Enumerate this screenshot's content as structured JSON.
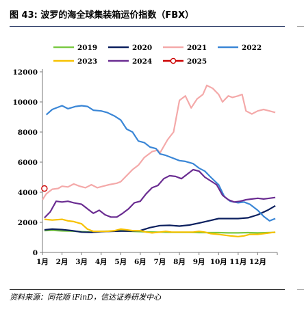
{
  "figure": {
    "number_label": "图 43:",
    "title": "波罗的海全球集装箱运价指数（FBX）",
    "source": "资料来源：同花顺 iFinD，信达证券研发中心"
  },
  "chart_data": {
    "type": "line",
    "title": "波罗的海全球集装箱运价指数（FBX）",
    "xlabel": "",
    "ylabel": "",
    "ylim": [
      0,
      12000
    ],
    "yticks": [
      0,
      2000,
      4000,
      6000,
      8000,
      10000,
      12000
    ],
    "xlim": [
      1,
      13
    ],
    "categories": [
      "1月",
      "2月",
      "3月",
      "4月",
      "5月",
      "6月",
      "7月",
      "8月",
      "9月",
      "10月",
      "11月",
      "12月"
    ],
    "grid": false,
    "legend_position": "top",
    "series": [
      {
        "name": "2019",
        "color": "#7ac943",
        "x": [
          1.1,
          1.5,
          2,
          2.5,
          3,
          3.5,
          4,
          4.5,
          5,
          5.5,
          6,
          6.5,
          7,
          7.5,
          8,
          8.5,
          9,
          9.5,
          10,
          10.5,
          11,
          11.5,
          12,
          12.5,
          12.9
        ],
        "y": [
          1450,
          1470,
          1430,
          1420,
          1380,
          1350,
          1400,
          1420,
          1450,
          1400,
          1380,
          1360,
          1350,
          1330,
          1330,
          1330,
          1320,
          1320,
          1320,
          1300,
          1300,
          1320,
          1300,
          1320,
          1330
        ]
      },
      {
        "name": "2020",
        "color": "#0b1f5e",
        "x": [
          1.1,
          1.5,
          2,
          2.5,
          3,
          3.5,
          4,
          4.5,
          5,
          5.5,
          6,
          6.5,
          7,
          7.5,
          8,
          8.5,
          9,
          9.5,
          10,
          10.5,
          11,
          11.5,
          12,
          12.5,
          12.9
        ],
        "y": [
          1500,
          1550,
          1520,
          1450,
          1350,
          1330,
          1380,
          1400,
          1420,
          1420,
          1450,
          1650,
          1780,
          1800,
          1750,
          1820,
          1950,
          2100,
          2250,
          2250,
          2250,
          2300,
          2500,
          2800,
          3100
        ]
      },
      {
        "name": "2021",
        "color": "#f4a9a9",
        "x": [
          1.0,
          1.2,
          1.5,
          1.8,
          2,
          2.3,
          2.6,
          2.9,
          3.2,
          3.5,
          3.8,
          4.1,
          4.4,
          4.8,
          5.0,
          5.3,
          5.6,
          5.9,
          6.2,
          6.6,
          6.9,
          7.0,
          7.4,
          7.7,
          8.0,
          8.3,
          8.6,
          8.9,
          9.2,
          9.4,
          9.7,
          10.0,
          10.2,
          10.5,
          10.7,
          11.0,
          11.2,
          11.4,
          11.7,
          12.0,
          12.3,
          12.6,
          12.9
        ],
        "y": [
          3500,
          3900,
          4200,
          4250,
          4400,
          4350,
          4550,
          4400,
          4300,
          4500,
          4300,
          4400,
          4500,
          4600,
          4700,
          5100,
          5500,
          5800,
          6300,
          6700,
          6800,
          6600,
          7500,
          8000,
          10100,
          10400,
          9600,
          10200,
          10500,
          11100,
          10900,
          10500,
          10000,
          10400,
          10300,
          10400,
          10500,
          9400,
          9200,
          9400,
          9500,
          9400,
          9300
        ]
      },
      {
        "name": "2022",
        "color": "#3a86d6",
        "x": [
          1.2,
          1.5,
          2,
          2.3,
          2.7,
          3,
          3.3,
          3.6,
          4,
          4.3,
          4.7,
          5,
          5.3,
          5.6,
          5.9,
          6.2,
          6.5,
          6.8,
          7.0,
          7.3,
          7.6,
          8.0,
          8.3,
          8.7,
          9.0,
          9.3,
          9.6,
          10.0,
          10.3,
          10.6,
          11.0,
          11.3,
          11.6,
          12.0,
          12.3,
          12.6,
          12.9
        ],
        "y": [
          9150,
          9500,
          9750,
          9550,
          9700,
          9750,
          9700,
          9450,
          9400,
          9300,
          9050,
          8800,
          8200,
          8000,
          7400,
          7300,
          7000,
          6900,
          6550,
          6450,
          6300,
          6100,
          6050,
          5900,
          5600,
          5400,
          5000,
          4500,
          3700,
          3400,
          3300,
          3350,
          3200,
          2800,
          2400,
          2100,
          2250
        ]
      },
      {
        "name": "2023",
        "color": "#f7c100",
        "x": [
          1.1,
          1.5,
          2,
          2.3,
          2.6,
          3,
          3.3,
          3.6,
          4,
          4.3,
          4.7,
          5,
          5.3,
          5.6,
          6,
          6.3,
          6.6,
          7,
          7.3,
          7.6,
          8,
          8.3,
          8.7,
          9,
          9.3,
          9.6,
          10,
          10.3,
          10.6,
          11,
          11.3,
          11.6,
          12,
          12.3,
          12.6,
          12.9
        ],
        "y": [
          2200,
          2150,
          2200,
          2100,
          2050,
          1900,
          1550,
          1400,
          1400,
          1400,
          1450,
          1550,
          1500,
          1450,
          1450,
          1350,
          1300,
          1350,
          1400,
          1350,
          1350,
          1350,
          1350,
          1400,
          1350,
          1250,
          1200,
          1150,
          1100,
          1050,
          1100,
          1200,
          1200,
          1250,
          1300,
          1350
        ]
      },
      {
        "name": "2024",
        "color": "#6a2c91",
        "x": [
          1.1,
          1.4,
          1.7,
          2,
          2.3,
          2.6,
          3,
          3.3,
          3.6,
          3.9,
          4.2,
          4.5,
          4.8,
          5.1,
          5.4,
          5.7,
          6,
          6.3,
          6.6,
          6.9,
          7.2,
          7.5,
          7.8,
          8.1,
          8.4,
          8.7,
          9,
          9.3,
          9.6,
          9.9,
          10.2,
          10.5,
          10.8,
          11.1,
          11.4,
          11.7,
          12,
          12.3,
          12.6,
          12.9
        ],
        "y": [
          2300,
          2700,
          3400,
          3350,
          3400,
          3300,
          3200,
          2900,
          2600,
          2800,
          2500,
          2350,
          2350,
          2600,
          2900,
          3300,
          3400,
          3900,
          4300,
          4450,
          4900,
          5100,
          5050,
          4900,
          5200,
          5500,
          5400,
          5000,
          4750,
          4500,
          3800,
          3500,
          3350,
          3400,
          3500,
          3550,
          3600,
          3550,
          3600,
          3650
        ]
      },
      {
        "name": "2025",
        "color": "#cc0000",
        "marker": "circle",
        "x": [
          1.1
        ],
        "y": [
          4250
        ]
      }
    ]
  }
}
